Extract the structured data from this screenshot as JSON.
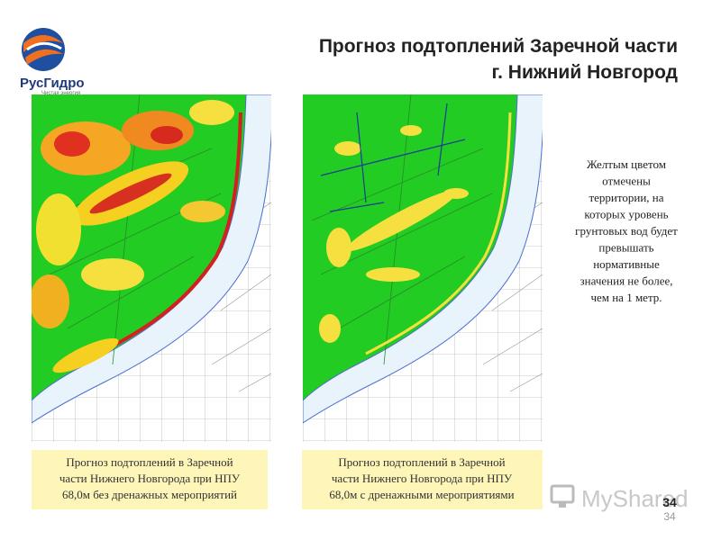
{
  "logo": {
    "name": "РусГидро",
    "slogan": "Чистая энергия"
  },
  "title": [
    "Прогноз подтоплений Заречной части",
    "г. Нижний Новгород"
  ],
  "maps": [
    {
      "caption": [
        "Прогноз подтоплений в Заречной",
        "части Нижнего Новгорода при НПУ",
        "68,0м без дренажных мероприятий"
      ]
    },
    {
      "caption": [
        "Прогноз подтоплений в Заречной",
        "части Нижнего Новгорода при НПУ",
        "68,0м с дренажными мероприятиями"
      ]
    }
  ],
  "note": [
    "Желтым цветом",
    "отмечены",
    "территории, на",
    "которых уровень",
    "грунтовых вод будет",
    "превышать",
    "нормативные",
    "значения не более,",
    "чем на 1 метр."
  ],
  "page_number": "34",
  "watermark": "MyShared"
}
